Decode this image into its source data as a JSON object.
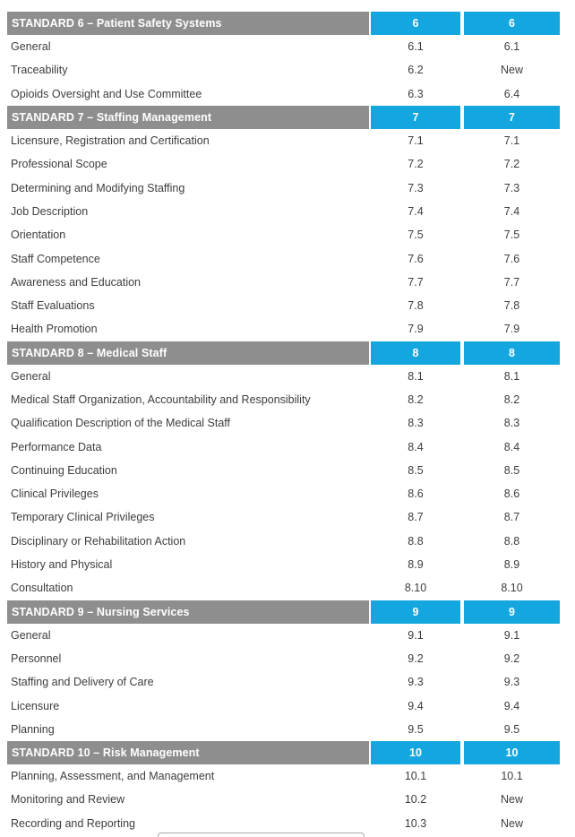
{
  "colors": {
    "header_gray": "#8e8e8e",
    "accent_cyan": "#14a7df",
    "row_text": "#3d3d3d",
    "header_text": "#ffffff",
    "cutoff_line": "#a9a9a9"
  },
  "table": {
    "sections": [
      {
        "title": "STANDARD 6 – Patient Safety Systems",
        "code_col1": "6",
        "code_col2": "6",
        "rows": [
          {
            "label": "General",
            "col1": "6.1",
            "col2": "6.1"
          },
          {
            "label": "Traceability",
            "col1": "6.2",
            "col2": "New"
          },
          {
            "label": "Opioids Oversight and Use Committee",
            "col1": "6.3",
            "col2": "6.4"
          }
        ]
      },
      {
        "title": "STANDARD 7 – Staffing Management",
        "code_col1": "7",
        "code_col2": "7",
        "rows": [
          {
            "label": "Licensure, Registration and Certification",
            "col1": "7.1",
            "col2": "7.1"
          },
          {
            "label": "Professional Scope",
            "col1": "7.2",
            "col2": "7.2"
          },
          {
            "label": "Determining and Modifying Staffing",
            "col1": "7.3",
            "col2": "7.3"
          },
          {
            "label": "Job Description",
            "col1": "7.4",
            "col2": "7.4"
          },
          {
            "label": "Orientation",
            "col1": "7.5",
            "col2": "7.5"
          },
          {
            "label": "Staff Competence",
            "col1": "7.6",
            "col2": "7.6"
          },
          {
            "label": "Awareness and Education",
            "col1": "7.7",
            "col2": "7.7"
          },
          {
            "label": "Staff Evaluations",
            "col1": "7.8",
            "col2": "7.8"
          },
          {
            "label": "Health Promotion",
            "col1": "7.9",
            "col2": "7.9"
          }
        ]
      },
      {
        "title": "STANDARD 8 – Medical Staff",
        "code_col1": "8",
        "code_col2": "8",
        "rows": [
          {
            "label": "General",
            "col1": "8.1",
            "col2": "8.1"
          },
          {
            "label": "Medical Staff Organization, Accountability and Responsibility",
            "col1": "8.2",
            "col2": "8.2"
          },
          {
            "label": "Qualification Description of the Medical Staff",
            "col1": "8.3",
            "col2": "8.3"
          },
          {
            "label": "Performance Data",
            "col1": "8.4",
            "col2": "8.4"
          },
          {
            "label": "Continuing Education",
            "col1": "8.5",
            "col2": "8.5"
          },
          {
            "label": "Clinical Privileges",
            "col1": "8.6",
            "col2": "8.6"
          },
          {
            "label": "Temporary Clinical Privileges",
            "col1": "8.7",
            "col2": "8.7"
          },
          {
            "label": "Disciplinary or Rehabilitation Action",
            "col1": "8.8",
            "col2": "8.8"
          },
          {
            "label": "History and Physical",
            "col1": "8.9",
            "col2": "8.9"
          },
          {
            "label": "Consultation",
            "col1": "8.10",
            "col2": "8.10"
          }
        ]
      },
      {
        "title": "STANDARD 9 – Nursing Services",
        "code_col1": "9",
        "code_col2": "9",
        "rows": [
          {
            "label": "General",
            "col1": "9.1",
            "col2": "9.1"
          },
          {
            "label": "Personnel",
            "col1": "9.2",
            "col2": "9.2"
          },
          {
            "label": "Staffing and Delivery of Care",
            "col1": "9.3",
            "col2": "9.3"
          },
          {
            "label": "Licensure",
            "col1": "9.4",
            "col2": "9.4"
          },
          {
            "label": "Planning",
            "col1": "9.5",
            "col2": "9.5"
          }
        ]
      },
      {
        "title": "STANDARD 10 – Risk Management",
        "code_col1": "10",
        "code_col2": "10",
        "rows": [
          {
            "label": "Planning, Assessment, and Management",
            "col1": "10.1",
            "col2": "10.1"
          },
          {
            "label": "Monitoring and Review",
            "col1": "10.2",
            "col2": "New"
          },
          {
            "label": "Recording and Reporting",
            "col1": "10.3",
            "col2": "New"
          }
        ]
      }
    ]
  }
}
